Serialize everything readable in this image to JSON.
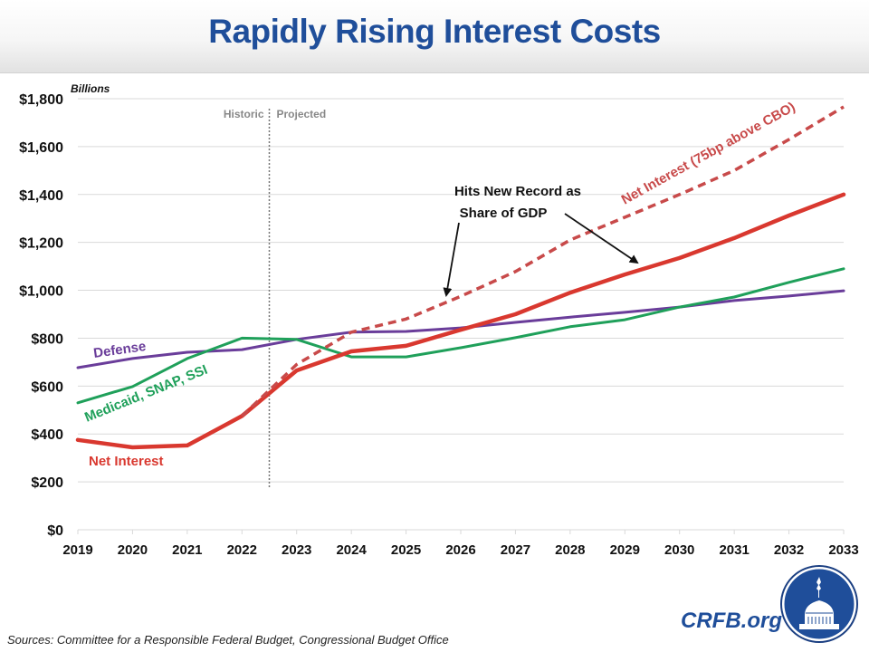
{
  "header": {
    "title": "Rapidly Rising Interest Costs"
  },
  "footer": {
    "sources": "Sources: Committee for a Responsible Federal Budget, Congressional Budget Office",
    "brand": "CRFB.org",
    "logo_icon": "capitol-dome-logo-icon"
  },
  "colors": {
    "title": "#1f4e9a",
    "net_interest": "#d9382f",
    "net_interest_alt": "#c84a4a",
    "medicaid": "#1fa05a",
    "defense": "#6a3d9a",
    "grid": "#d9d9d9",
    "divider": "#777777"
  },
  "chart_data": {
    "type": "line",
    "title": "Rapidly Rising Interest Costs",
    "unit_label": "Billions",
    "xlabel": "",
    "ylabel": "Billions",
    "ylim": [
      0,
      1800
    ],
    "yticks": [
      0,
      200,
      400,
      600,
      800,
      1000,
      1200,
      1400,
      1600,
      1800
    ],
    "ytick_labels": [
      "$0",
      "$200",
      "$400",
      "$600",
      "$800",
      "$1,000",
      "$1,200",
      "$1,400",
      "$1,600",
      "$1,800"
    ],
    "x": [
      "2019",
      "2020",
      "2021",
      "2022",
      "2023",
      "2024",
      "2025",
      "2026",
      "2027",
      "2028",
      "2029",
      "2030",
      "2031",
      "2032",
      "2033"
    ],
    "grid": true,
    "divider": {
      "at_year": 2022.5,
      "left_label": "Historic",
      "right_label": "Projected"
    },
    "series": [
      {
        "name": "Defense",
        "label": "Defense",
        "color_key": "defense",
        "style": "solid",
        "values": [
          677,
          715,
          741,
          752,
          795,
          825,
          828,
          843,
          866,
          888,
          908,
          930,
          957,
          976,
          998
        ]
      },
      {
        "name": "Medicaid, SNAP, SSI",
        "label": "Medicaid, SNAP, SSI",
        "color_key": "medicaid",
        "style": "solid",
        "values": [
          530,
          598,
          715,
          800,
          795,
          722,
          722,
          760,
          802,
          848,
          877,
          930,
          972,
          1033,
          1090
        ]
      },
      {
        "name": "Net Interest",
        "label": "Net Interest",
        "color_key": "net_interest",
        "style": "solid",
        "values": [
          375,
          344,
          352,
          475,
          665,
          745,
          768,
          835,
          900,
          990,
          1066,
          1135,
          1218,
          1312,
          1400
        ]
      },
      {
        "name": "Net Interest (75bp above CBO)",
        "label": "Net Interest (75bp above CBO)",
        "color_key": "net_interest_alt",
        "style": "dashed",
        "start_index": 3,
        "values": [
          null,
          null,
          null,
          475,
          690,
          825,
          880,
          975,
          1078,
          1210,
          1305,
          1400,
          1500,
          1630,
          1766
        ]
      }
    ],
    "annotations": [
      {
        "text_lines": [
          "Hits New Record as",
          "Share of GDP"
        ],
        "arrows_to": [
          {
            "series": "Net Interest (75bp above CBO)",
            "x": 2025.8
          },
          {
            "series": "Net Interest",
            "x": 2029.3
          }
        ]
      }
    ]
  }
}
